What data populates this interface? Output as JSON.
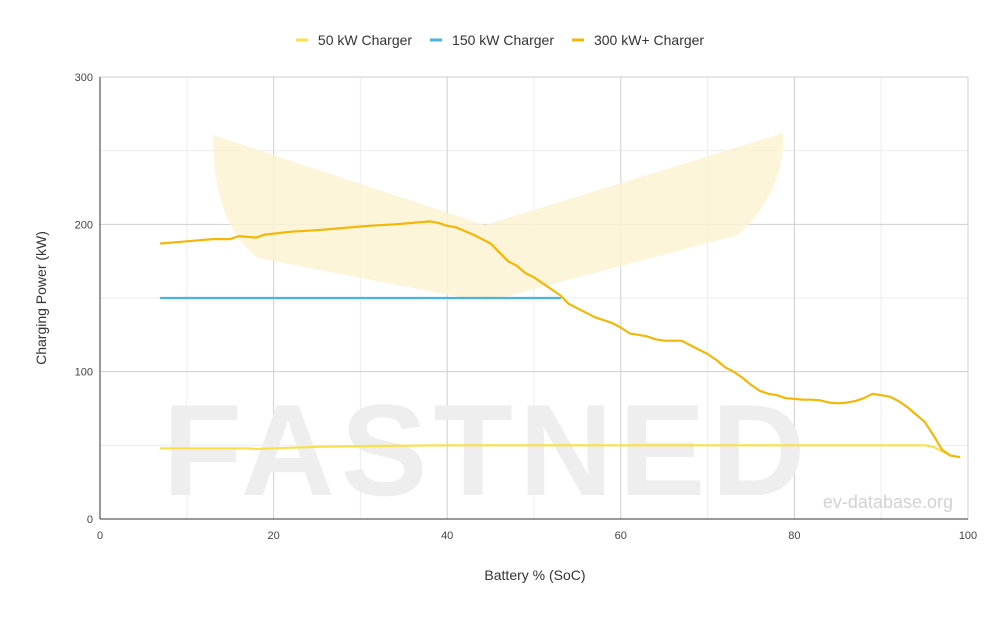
{
  "watermark": {
    "brand": "FASTNED",
    "site": "ev-database.org"
  },
  "chart_data": {
    "type": "line",
    "title": "",
    "xlabel": "Battery % (SoC)",
    "ylabel": "Charging Power (kW)",
    "xlim": [
      0,
      100
    ],
    "ylim": [
      0,
      300
    ],
    "x_ticks": [
      0,
      20,
      40,
      60,
      80,
      100
    ],
    "y_ticks": [
      0,
      100,
      200,
      300
    ],
    "grid": true,
    "legend_position": "top",
    "series": [
      {
        "name": "50 kW Charger",
        "color": "#f9e04b",
        "points": [
          [
            7,
            48
          ],
          [
            12,
            48
          ],
          [
            17,
            48
          ],
          [
            18,
            47.5
          ],
          [
            20,
            48
          ],
          [
            25,
            49
          ],
          [
            30,
            49.5
          ],
          [
            40,
            50
          ],
          [
            50,
            50
          ],
          [
            60,
            50
          ],
          [
            70,
            50
          ],
          [
            80,
            50
          ],
          [
            90,
            50
          ],
          [
            95,
            50
          ],
          [
            96,
            49
          ],
          [
            97,
            46
          ],
          [
            98,
            43
          ],
          [
            99,
            42
          ]
        ]
      },
      {
        "name": "150 kW Charger",
        "color": "#4ab3e0",
        "points": [
          [
            7,
            150
          ],
          [
            20,
            150
          ],
          [
            30,
            150
          ],
          [
            40,
            150
          ],
          [
            50,
            150
          ],
          [
            53,
            150
          ]
        ]
      },
      {
        "name": "300 kW+ Charger",
        "color": "#f2b707",
        "points": [
          [
            7,
            187
          ],
          [
            10,
            188.5
          ],
          [
            13,
            190
          ],
          [
            15,
            190
          ],
          [
            16,
            192
          ],
          [
            18,
            191
          ],
          [
            19,
            193
          ],
          [
            22,
            195
          ],
          [
            25,
            196
          ],
          [
            28,
            197.5
          ],
          [
            31,
            199
          ],
          [
            34,
            200
          ],
          [
            37,
            201.5
          ],
          [
            38,
            202
          ],
          [
            39,
            201
          ],
          [
            40,
            199
          ],
          [
            41,
            198
          ],
          [
            43,
            193
          ],
          [
            45,
            187
          ],
          [
            46,
            181
          ],
          [
            47,
            175
          ],
          [
            48,
            172
          ],
          [
            49,
            167
          ],
          [
            50,
            164
          ],
          [
            51,
            160
          ],
          [
            52,
            156
          ],
          [
            53,
            152
          ],
          [
            54,
            146
          ],
          [
            55,
            143
          ],
          [
            57,
            137
          ],
          [
            59,
            133
          ],
          [
            60,
            130
          ],
          [
            61,
            126
          ],
          [
            62,
            125
          ],
          [
            63,
            124
          ],
          [
            64,
            122
          ],
          [
            65,
            121
          ],
          [
            66,
            121
          ],
          [
            67,
            121
          ],
          [
            68,
            118
          ],
          [
            69,
            115
          ],
          [
            70,
            112
          ],
          [
            71,
            108
          ],
          [
            72,
            103
          ],
          [
            73,
            100
          ],
          [
            74,
            96
          ],
          [
            75,
            91
          ],
          [
            76,
            87
          ],
          [
            77,
            85
          ],
          [
            78,
            84
          ],
          [
            79,
            82
          ],
          [
            80,
            81.5
          ],
          [
            81,
            81
          ],
          [
            82,
            81
          ],
          [
            83,
            80.5
          ],
          [
            84,
            79
          ],
          [
            85,
            78.5
          ],
          [
            86,
            79
          ],
          [
            87,
            80
          ],
          [
            88,
            82
          ],
          [
            89,
            85
          ],
          [
            90,
            84
          ],
          [
            91,
            83
          ],
          [
            92,
            80
          ],
          [
            93,
            76
          ],
          [
            94,
            71
          ],
          [
            95,
            66
          ],
          [
            96,
            57
          ],
          [
            97,
            47
          ],
          [
            98,
            43
          ],
          [
            99,
            42
          ]
        ]
      }
    ]
  }
}
